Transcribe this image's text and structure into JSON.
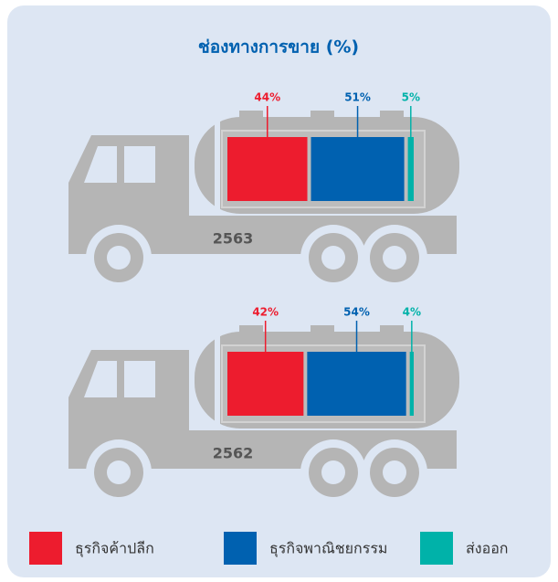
{
  "chart_data": {
    "type": "bar",
    "orientation": "horizontal",
    "stacked": true,
    "title": "ช่องทางการขาย (%)",
    "categories": [
      "2563",
      "2562"
    ],
    "series": [
      {
        "name": "ธุรกิจค้าปลีก",
        "color": "#ed1c2e",
        "values": [
          44,
          42
        ],
        "value_labels": [
          "44%",
          "42%"
        ]
      },
      {
        "name": "ธุรกิจพาณิชยกรรม",
        "color": "#0061b0",
        "values": [
          51,
          54
        ],
        "value_labels": [
          "51%",
          "54%"
        ]
      },
      {
        "name": "ส่งออก",
        "color": "#00b2a9",
        "values": [
          5,
          4
        ],
        "value_labels": [
          "5%",
          "4%"
        ]
      }
    ]
  }
}
